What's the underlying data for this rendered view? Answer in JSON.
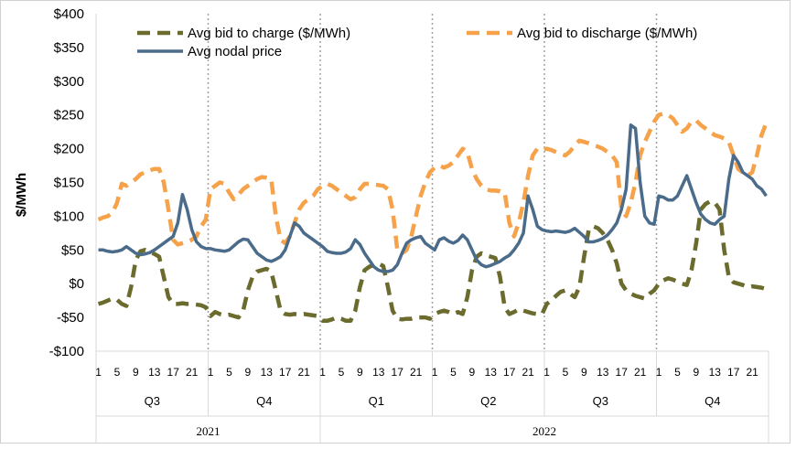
{
  "chart_data": {
    "type": "line",
    "ylabel": "$/MWh",
    "xlabel": "",
    "ylim": [
      -100,
      400
    ],
    "y_ticks": [
      {
        "value": 400,
        "label": "$400"
      },
      {
        "value": 350,
        "label": "$350"
      },
      {
        "value": 300,
        "label": "$300"
      },
      {
        "value": 250,
        "label": "$250"
      },
      {
        "value": 200,
        "label": "$200"
      },
      {
        "value": 150,
        "label": "$150"
      },
      {
        "value": 100,
        "label": "$100"
      },
      {
        "value": 50,
        "label": "$50"
      },
      {
        "value": 0,
        "label": "$0"
      },
      {
        "value": -50,
        "label": "-$50"
      },
      {
        "value": -100,
        "label": "-$100"
      }
    ],
    "hour_tick_labels": [
      "1",
      "5",
      "9",
      "13",
      "17",
      "21"
    ],
    "quarters": [
      "Q3",
      "Q4",
      "Q1",
      "Q2",
      "Q3",
      "Q4"
    ],
    "years": [
      {
        "label": "2021",
        "quarters": 2
      },
      {
        "label": "2022",
        "quarters": 4
      }
    ],
    "grid": false,
    "legend_position": "top",
    "series": [
      {
        "name": "Avg bid to charge ($/MWh)",
        "color": "#6b6b2e",
        "style": "dashed",
        "values": [
          [
            -30,
            -28,
            -25,
            -22,
            -24,
            -30,
            -33,
            -5,
            35,
            48,
            50,
            47,
            44,
            40,
            10,
            -20,
            -30,
            -30,
            -29,
            -30,
            -30,
            -31,
            -32,
            -35
          ],
          [
            -48,
            -42,
            -45,
            -47,
            -46,
            -48,
            -50,
            -40,
            -10,
            10,
            18,
            20,
            22,
            18,
            -10,
            -40,
            -45,
            -46,
            -45,
            -46,
            -45,
            -46,
            -47,
            -48
          ],
          [
            -55,
            -55,
            -53,
            -50,
            -52,
            -55,
            -55,
            -40,
            -5,
            20,
            25,
            28,
            30,
            26,
            -5,
            -40,
            -52,
            -53,
            -52,
            -52,
            -50,
            -50,
            -50,
            -52
          ],
          [
            -45,
            -42,
            -40,
            -42,
            -45,
            -42,
            -45,
            -20,
            20,
            40,
            45,
            42,
            40,
            38,
            10,
            -35,
            -45,
            -42,
            -38,
            -40,
            -42,
            -44,
            -45,
            -45
          ],
          [
            -30,
            -25,
            -18,
            -12,
            -10,
            -15,
            -20,
            -5,
            40,
            80,
            85,
            82,
            75,
            65,
            50,
            30,
            0,
            -10,
            -15,
            -18,
            -20,
            -22,
            -15,
            -10
          ],
          [
            0,
            5,
            8,
            6,
            3,
            0,
            -2,
            20,
            60,
            110,
            118,
            122,
            120,
            110,
            50,
            10,
            2,
            0,
            -2,
            -5,
            -4,
            -5,
            -6,
            -8
          ]
        ]
      },
      {
        "name": "Avg bid to discharge ($/MWh)",
        "color": "#f6a24a",
        "style": "dashed",
        "values": [
          [
            95,
            98,
            100,
            105,
            120,
            148,
            145,
            150,
            155,
            162,
            165,
            168,
            170,
            170,
            150,
            110,
            65,
            58,
            60,
            62,
            65,
            70,
            85,
            95
          ],
          [
            140,
            145,
            150,
            148,
            135,
            125,
            132,
            140,
            145,
            150,
            155,
            158,
            157,
            155,
            100,
            65,
            60,
            70,
            90,
            110,
            120,
            125,
            130,
            140
          ],
          [
            145,
            148,
            145,
            140,
            135,
            130,
            125,
            128,
            140,
            148,
            148,
            147,
            146,
            145,
            140,
            110,
            50,
            45,
            50,
            70,
            100,
            130,
            150,
            165
          ],
          [
            172,
            175,
            172,
            175,
            180,
            190,
            200,
            195,
            170,
            155,
            145,
            140,
            138,
            138,
            137,
            135,
            90,
            70,
            90,
            120,
            160,
            190,
            200,
            198
          ],
          [
            200,
            198,
            195,
            192,
            190,
            196,
            205,
            212,
            210,
            208,
            205,
            203,
            200,
            195,
            190,
            180,
            110,
            100,
            120,
            150,
            190,
            210,
            225,
            240
          ],
          [
            250,
            252,
            250,
            245,
            235,
            225,
            230,
            240,
            242,
            235,
            230,
            225,
            220,
            218,
            215,
            210,
            190,
            170,
            165,
            160,
            165,
            190,
            220,
            238
          ]
        ]
      },
      {
        "name": "Avg nodal price",
        "color": "#4a6b8a",
        "style": "solid",
        "values": [
          [
            50,
            50,
            48,
            47,
            48,
            50,
            55,
            50,
            45,
            43,
            44,
            46,
            50,
            55,
            60,
            65,
            70,
            90,
            132,
            110,
            80,
            62,
            55,
            52
          ],
          [
            52,
            50,
            49,
            48,
            50,
            56,
            62,
            66,
            65,
            55,
            45,
            40,
            35,
            33,
            36,
            40,
            50,
            70,
            90,
            85,
            75,
            70,
            65,
            60
          ],
          [
            55,
            48,
            46,
            45,
            45,
            47,
            52,
            65,
            58,
            45,
            35,
            25,
            20,
            18,
            18,
            20,
            28,
            45,
            60,
            65,
            68,
            70,
            60,
            55
          ],
          [
            50,
            65,
            68,
            63,
            60,
            64,
            72,
            65,
            50,
            35,
            28,
            25,
            27,
            30,
            33,
            38,
            42,
            50,
            60,
            75,
            130,
            110,
            85,
            80
          ],
          [
            78,
            77,
            78,
            77,
            76,
            78,
            82,
            76,
            70,
            62,
            62,
            64,
            67,
            72,
            80,
            90,
            110,
            140,
            235,
            230,
            150,
            100,
            90,
            88
          ],
          [
            130,
            128,
            124,
            124,
            130,
            145,
            160,
            140,
            120,
            103,
            95,
            90,
            88,
            95,
            100,
            155,
            190,
            180,
            165,
            160,
            155,
            145,
            140,
            130
          ]
        ]
      }
    ]
  }
}
